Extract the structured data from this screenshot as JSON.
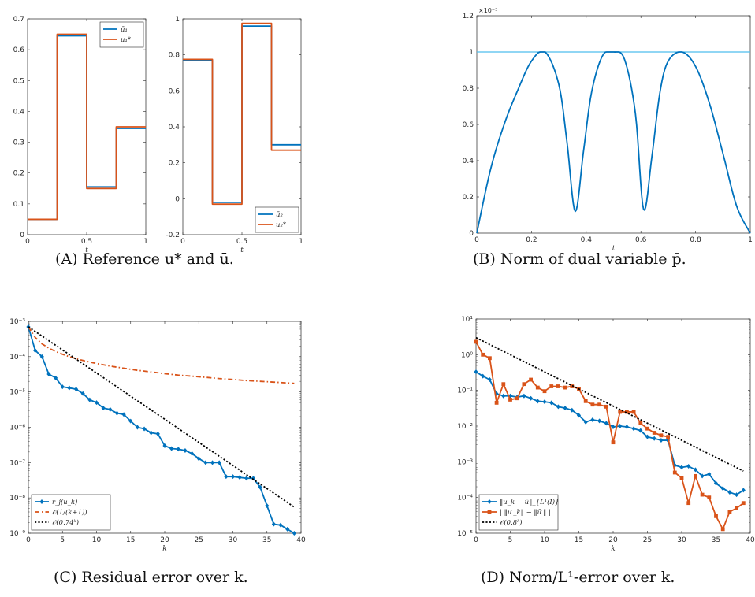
{
  "colors": {
    "blue": "#0072BD",
    "orange": "#D95319",
    "black": "#000000",
    "teal": "#4DBEEE"
  },
  "captions": {
    "a": {
      "label": "(A)",
      "text": "Reference u* and ū."
    },
    "b": {
      "label": "(B)",
      "text": "Norm of dual variable p̄."
    },
    "c": {
      "label": "(C)",
      "text": "Residual error over k."
    },
    "d": {
      "label": "(D)",
      "text": "Norm/L¹-error over k."
    }
  },
  "chart_data": [
    {
      "id": "a1",
      "type": "line",
      "xlabel": "t",
      "ylabel": "",
      "xlim": [
        0,
        1
      ],
      "ylim": [
        0,
        0.7
      ],
      "xticks": [
        0,
        0.5,
        1
      ],
      "xtick_labels": [
        "0",
        "0.5",
        "1"
      ],
      "yticks": [
        0,
        0.1,
        0.2,
        0.3,
        0.4,
        0.5,
        0.6,
        0.7
      ],
      "ytick_labels": [
        "0",
        "0.1",
        "0.2",
        "0.3",
        "0.4",
        "0.5",
        "0.6",
        "0.7"
      ],
      "legend_position": "top-right",
      "series": [
        {
          "name": "ū₁",
          "color": "#0072BD",
          "step": true,
          "x": [
            0,
            0.25,
            0.5,
            0.75,
            1
          ],
          "y": [
            0.05,
            0.645,
            0.155,
            0.345,
            0.345
          ]
        },
        {
          "name": "u₁*",
          "color": "#D95319",
          "step": true,
          "x": [
            0,
            0.25,
            0.5,
            0.75,
            1
          ],
          "y": [
            0.05,
            0.65,
            0.15,
            0.35,
            0.35
          ]
        }
      ]
    },
    {
      "id": "a2",
      "type": "line",
      "xlabel": "t",
      "ylabel": "",
      "xlim": [
        0,
        1
      ],
      "ylim": [
        -0.2,
        1
      ],
      "xticks": [
        0,
        0.5,
        1
      ],
      "xtick_labels": [
        "0",
        "0.5",
        "1"
      ],
      "yticks": [
        -0.2,
        0,
        0.2,
        0.4,
        0.6,
        0.8,
        1
      ],
      "ytick_labels": [
        "-0.2",
        "0",
        "0.2",
        "0.4",
        "0.6",
        "0.8",
        "1"
      ],
      "legend_position": "bottom-right",
      "series": [
        {
          "name": "ū₂",
          "color": "#0072BD",
          "step": true,
          "x": [
            0,
            0.25,
            0.5,
            0.75,
            1
          ],
          "y": [
            0.77,
            -0.02,
            0.96,
            0.3,
            0.3
          ]
        },
        {
          "name": "u₂*",
          "color": "#D95319",
          "step": true,
          "x": [
            0,
            0.25,
            0.5,
            0.75,
            1
          ],
          "y": [
            0.775,
            -0.03,
            0.975,
            0.27,
            0.27
          ]
        }
      ]
    },
    {
      "id": "b",
      "type": "line",
      "xlabel": "t",
      "ylabel": "",
      "exponent_label": "×10⁻⁵",
      "xlim": [
        0,
        1
      ],
      "ylim": [
        0,
        1.2
      ],
      "xticks": [
        0,
        0.2,
        0.4,
        0.6,
        0.8,
        1
      ],
      "xtick_labels": [
        "0",
        "0.2",
        "0.4",
        "0.6",
        "0.8",
        "1"
      ],
      "yticks": [
        0,
        0.2,
        0.4,
        0.6,
        0.8,
        1,
        1.2
      ],
      "ytick_labels": [
        "0",
        "0.2",
        "0.4",
        "0.6",
        "0.8",
        "1",
        "1.2"
      ],
      "series": [
        {
          "name": "",
          "color": "#4DBEEE",
          "width": 1.2,
          "x": [
            0,
            1
          ],
          "y": [
            1,
            1
          ]
        },
        {
          "name": "",
          "color": "#0072BD",
          "smooth": true,
          "x": [
            0,
            0.05,
            0.1,
            0.15,
            0.2,
            0.25,
            0.3,
            0.33,
            0.36,
            0.39,
            0.42,
            0.46,
            0.5,
            0.54,
            0.58,
            0.61,
            0.64,
            0.67,
            0.7,
            0.75,
            0.8,
            0.85,
            0.9,
            0.95,
            1
          ],
          "y": [
            0,
            0.35,
            0.6,
            0.79,
            0.95,
            1.0,
            0.82,
            0.5,
            0.12,
            0.45,
            0.78,
            0.98,
            1.0,
            0.96,
            0.66,
            0.13,
            0.42,
            0.78,
            0.95,
            1.0,
            0.92,
            0.72,
            0.44,
            0.15,
            0
          ]
        }
      ]
    },
    {
      "id": "c",
      "type": "line",
      "xlabel": "k",
      "ylabel": "",
      "yscale": "log",
      "xlim": [
        0,
        40
      ],
      "ylim": [
        1e-09,
        0.001
      ],
      "xticks": [
        0,
        5,
        10,
        15,
        20,
        25,
        30,
        35,
        40
      ],
      "xtick_labels": [
        "0",
        "5",
        "10",
        "15",
        "20",
        "25",
        "30",
        "35",
        "40"
      ],
      "yticks": [
        1e-09,
        1e-08,
        1e-07,
        1e-06,
        1e-05,
        0.0001,
        0.001
      ],
      "ytick_labels": [
        "10⁻⁹",
        "10⁻⁸",
        "10⁻⁷",
        "10⁻⁶",
        "10⁻⁵",
        "10⁻⁴",
        "10⁻³"
      ],
      "legend_position": "bottom-left",
      "series": [
        {
          "name": "r_j(u_k)",
          "color": "#0072BD",
          "marker": "diamond",
          "x": [
            0,
            1,
            2,
            3,
            4,
            5,
            6,
            7,
            8,
            9,
            10,
            11,
            12,
            13,
            14,
            15,
            16,
            17,
            18,
            19,
            20,
            21,
            22,
            23,
            24,
            25,
            26,
            27,
            28,
            29,
            30,
            31,
            32,
            33,
            34,
            35,
            36,
            37,
            38,
            39
          ],
          "y": [
            0.0007,
            0.00015,
            0.0001,
            3.2e-05,
            2.5e-05,
            1.4e-05,
            1.3e-05,
            1.2e-05,
            9e-06,
            6e-06,
            5e-06,
            3.5e-06,
            3.2e-06,
            2.5e-06,
            2.3e-06,
            1.5e-06,
            1e-06,
            9e-07,
            7e-07,
            6.5e-07,
            3e-07,
            2.5e-07,
            2.4e-07,
            2.2e-07,
            1.8e-07,
            1.3e-07,
            1e-07,
            1e-07,
            1e-07,
            4e-08,
            4e-08,
            3.8e-08,
            3.6e-08,
            3.6e-08,
            2e-08,
            6e-09,
            1.8e-09,
            1.7e-09,
            1.3e-09,
            1e-09
          ]
        },
        {
          "name": "𝒪(1/(k+1))",
          "color": "#D95319",
          "dash": "dashdot",
          "x": [
            0,
            1,
            2,
            3,
            4,
            5,
            6,
            7,
            8,
            9,
            10,
            12,
            14,
            16,
            18,
            20,
            22,
            24,
            26,
            28,
            30,
            32,
            34,
            36,
            38,
            39
          ],
          "y": [
            0.0007,
            0.00035,
            0.00023,
            0.000175,
            0.00014,
            0.000117,
            0.0001,
            8.75e-05,
            7.8e-05,
            7e-05,
            6.4e-05,
            5.4e-05,
            4.7e-05,
            4.1e-05,
            3.7e-05,
            3.3e-05,
            3e-05,
            2.8e-05,
            2.6e-05,
            2.4e-05,
            2.26e-05,
            2.1e-05,
            2e-05,
            1.9e-05,
            1.8e-05,
            1.75e-05
          ]
        },
        {
          "name": "𝒪(0.74ᵏ)",
          "color": "#000000",
          "dash": "dotted",
          "x": [
            0,
            39
          ],
          "y": [
            0.0007,
            5.5e-09
          ]
        }
      ]
    },
    {
      "id": "d",
      "type": "line",
      "xlabel": "k",
      "ylabel": "",
      "yscale": "log",
      "xlim": [
        0,
        40
      ],
      "ylim": [
        1e-05,
        10
      ],
      "xticks": [
        0,
        5,
        10,
        15,
        20,
        25,
        30,
        35,
        40
      ],
      "xtick_labels": [
        "0",
        "5",
        "10",
        "15",
        "20",
        "25",
        "30",
        "35",
        "40"
      ],
      "yticks": [
        1e-05,
        0.0001,
        0.001,
        0.01,
        0.1,
        1,
        10
      ],
      "ytick_labels": [
        "10⁻⁵",
        "10⁻⁴",
        "10⁻³",
        "10⁻²",
        "10⁻¹",
        "10⁰",
        "10¹"
      ],
      "legend_position": "bottom-left",
      "series": [
        {
          "name": "‖u_k − ū‖_{L¹(I)}",
          "color": "#0072BD",
          "marker": "diamond",
          "x": [
            0,
            1,
            2,
            3,
            4,
            5,
            6,
            7,
            8,
            9,
            10,
            11,
            12,
            13,
            14,
            15,
            16,
            17,
            18,
            19,
            20,
            21,
            22,
            23,
            24,
            25,
            26,
            27,
            28,
            29,
            30,
            31,
            32,
            33,
            34,
            35,
            36,
            37,
            38,
            39
          ],
          "y": [
            0.33,
            0.25,
            0.2,
            0.08,
            0.07,
            0.07,
            0.065,
            0.07,
            0.06,
            0.05,
            0.048,
            0.045,
            0.035,
            0.032,
            0.028,
            0.02,
            0.013,
            0.015,
            0.014,
            0.012,
            0.0095,
            0.01,
            0.0095,
            0.0085,
            0.0075,
            0.005,
            0.0045,
            0.004,
            0.004,
            0.0008,
            0.0007,
            0.00075,
            0.0006,
            0.0004,
            0.00045,
            0.00025,
            0.00018,
            0.00014,
            0.00012,
            0.00016
          ]
        },
        {
          "name": "| ‖u′_k‖ − ‖ū′‖ |",
          "color": "#D95319",
          "marker": "square",
          "x": [
            0,
            1,
            2,
            3,
            4,
            5,
            6,
            7,
            8,
            9,
            10,
            11,
            12,
            13,
            14,
            15,
            16,
            17,
            18,
            19,
            20,
            21,
            22,
            23,
            24,
            25,
            26,
            27,
            28,
            29,
            30,
            31,
            32,
            33,
            34,
            35,
            36,
            37,
            38,
            39
          ],
          "y": [
            2.3,
            1.0,
            0.8,
            0.045,
            0.15,
            0.055,
            0.06,
            0.15,
            0.2,
            0.12,
            0.095,
            0.13,
            0.13,
            0.12,
            0.13,
            0.11,
            0.05,
            0.04,
            0.04,
            0.035,
            0.0035,
            0.025,
            0.025,
            0.025,
            0.012,
            0.0085,
            0.0065,
            0.0055,
            0.005,
            0.0005,
            0.00035,
            7e-05,
            0.0004,
            0.00012,
            0.0001,
            3e-05,
            1.3e-05,
            4e-05,
            5e-05,
            7e-05
          ]
        },
        {
          "name": "𝒪(0.8ᵏ)",
          "color": "#000000",
          "dash": "dotted",
          "x": [
            0,
            39
          ],
          "y": [
            3.0,
            0.00055
          ]
        }
      ]
    }
  ]
}
